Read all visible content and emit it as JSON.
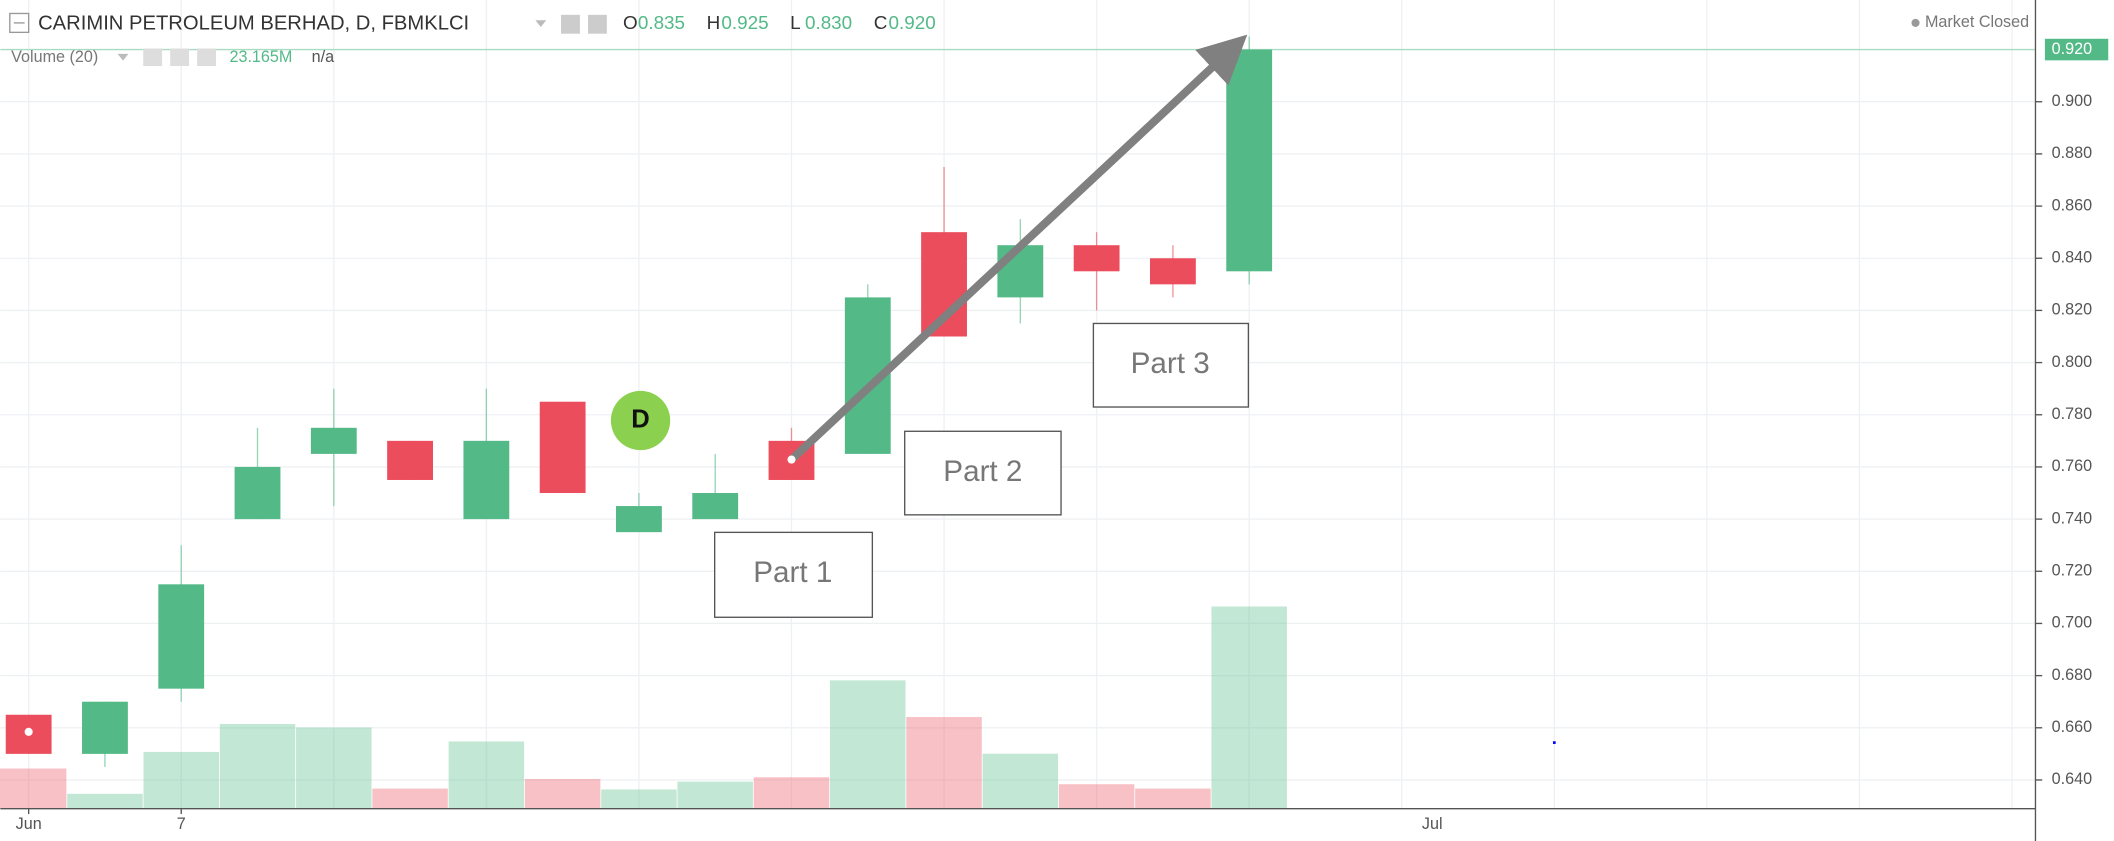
{
  "header": {
    "symbol": "CARIMIN PETROLEUM BERHAD, D, FBMKLCI",
    "ohlc": [
      {
        "label": "O",
        "value": "0.835"
      },
      {
        "label": "H",
        "value": "0.925"
      },
      {
        "label": "L",
        "value": "0.830"
      },
      {
        "label": "C",
        "value": "0.920"
      }
    ],
    "volume_title": "Volume (20)",
    "volume_value": "23.165M",
    "volume_ma": "n/a",
    "status": "Market Closed"
  },
  "chart_data": {
    "type": "candlestick",
    "categories": [
      "Jun",
      null,
      "7",
      null,
      null,
      null,
      null,
      null,
      null,
      null,
      null,
      null,
      null,
      null,
      null,
      null,
      null
    ],
    "open": [
      0.665,
      0.65,
      0.675,
      0.74,
      0.765,
      0.77,
      0.74,
      0.785,
      0.735,
      0.74,
      0.77,
      0.765,
      0.85,
      0.825,
      0.845,
      0.84,
      0.835
    ],
    "high": [
      0.665,
      0.67,
      0.73,
      0.775,
      0.79,
      0.77,
      0.79,
      0.785,
      0.75,
      0.765,
      0.775,
      0.83,
      0.875,
      0.855,
      0.85,
      0.845,
      0.925
    ],
    "low": [
      0.65,
      0.645,
      0.67,
      0.74,
      0.745,
      0.755,
      0.74,
      0.75,
      0.735,
      0.74,
      0.755,
      0.765,
      0.81,
      0.815,
      0.82,
      0.825,
      0.83
    ],
    "close": [
      0.65,
      0.67,
      0.715,
      0.76,
      0.775,
      0.755,
      0.77,
      0.75,
      0.745,
      0.75,
      0.755,
      0.825,
      0.81,
      0.845,
      0.835,
      0.83,
      0.92
    ],
    "volume": [
      4.6,
      1.7,
      6.5,
      9.7,
      9.3,
      2.3,
      7.7,
      3.4,
      2.2,
      3.1,
      3.6,
      14.7,
      10.5,
      6.3,
      2.8,
      2.3,
      23.165
    ],
    "up_color": "#53b987",
    "down_color": "#eb4d5c",
    "ylim": [
      0.629,
      0.939
    ],
    "yticks": [
      {
        "value": 0.64,
        "label": "0.640"
      },
      {
        "value": 0.66,
        "label": "0.660"
      },
      {
        "value": 0.68,
        "label": "0.680"
      },
      {
        "value": 0.7,
        "label": "0.700"
      },
      {
        "value": 0.72,
        "label": "0.720"
      },
      {
        "value": 0.74,
        "label": "0.740"
      },
      {
        "value": 0.76,
        "label": "0.760"
      },
      {
        "value": 0.78,
        "label": "0.780"
      },
      {
        "value": 0.8,
        "label": "0.800"
      },
      {
        "value": 0.82,
        "label": "0.820"
      },
      {
        "value": 0.84,
        "label": "0.840"
      },
      {
        "value": 0.86,
        "label": "0.860"
      },
      {
        "value": 0.88,
        "label": "0.880"
      },
      {
        "value": 0.9,
        "label": "0.900"
      }
    ],
    "future_tick_label": "Jul",
    "last_price": {
      "value": 0.92,
      "label": "0.920"
    },
    "annotations": [
      "Part 1",
      "Part 2",
      "Part 3"
    ],
    "marker": "D",
    "grid": true
  }
}
